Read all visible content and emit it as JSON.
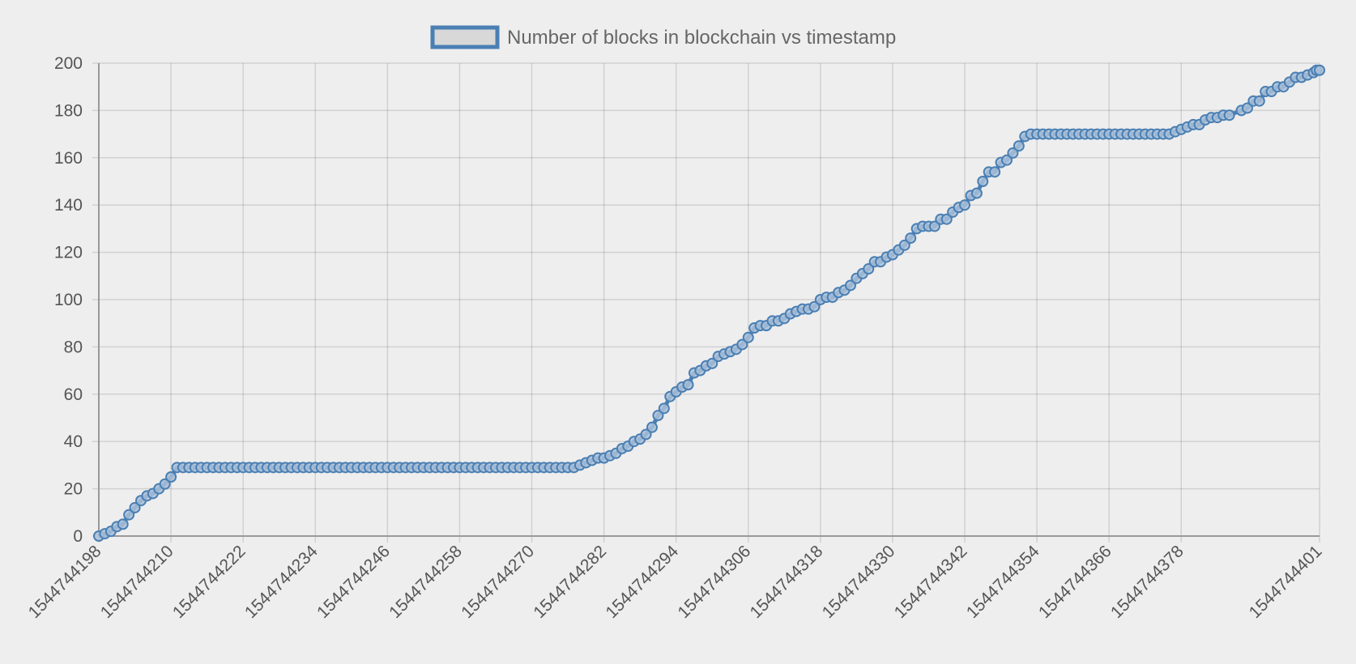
{
  "chart_data": {
    "type": "line",
    "legend": {
      "position": "top-center",
      "label": "Number of blocks in blockchain vs timestamp"
    },
    "colors": {
      "line": "#4a7fb3",
      "point_fill": "#a9c0d8",
      "legend_fill": "#d8d8d8",
      "background": "#eeeeee"
    },
    "x_axis": {
      "ticks": [
        "1544744198",
        "1544744210",
        "1544744222",
        "1544744234",
        "1544744246",
        "1544744258",
        "1544744270",
        "1544744282",
        "1544744294",
        "1544744306",
        "1544744318",
        "1544744330",
        "1544744342",
        "1544744354",
        "1544744366",
        "1544744378",
        "1544744401"
      ],
      "range": [
        1544744198,
        1544744401
      ]
    },
    "y_axis": {
      "ticks": [
        "0",
        "20",
        "40",
        "60",
        "80",
        "100",
        "120",
        "140",
        "160",
        "180",
        "200"
      ],
      "range": [
        0,
        200
      ]
    },
    "grid": true,
    "series": [
      {
        "name": "Number of blocks in blockchain vs timestamp",
        "points": [
          [
            1544744198,
            0
          ],
          [
            1544744199,
            1
          ],
          [
            1544744200,
            2
          ],
          [
            1544744201,
            4
          ],
          [
            1544744202,
            5
          ],
          [
            1544744203,
            9
          ],
          [
            1544744204,
            12
          ],
          [
            1544744205,
            15
          ],
          [
            1544744206,
            17
          ],
          [
            1544744207,
            18
          ],
          [
            1544744208,
            20
          ],
          [
            1544744209,
            22
          ],
          [
            1544744210,
            25
          ],
          [
            1544744211,
            29
          ],
          [
            1544744212,
            29
          ],
          [
            1544744213,
            29
          ],
          [
            1544744214,
            29
          ],
          [
            1544744215,
            29
          ],
          [
            1544744216,
            29
          ],
          [
            1544744217,
            29
          ],
          [
            1544744218,
            29
          ],
          [
            1544744219,
            29
          ],
          [
            1544744220,
            29
          ],
          [
            1544744221,
            29
          ],
          [
            1544744222,
            29
          ],
          [
            1544744223,
            29
          ],
          [
            1544744224,
            29
          ],
          [
            1544744225,
            29
          ],
          [
            1544744226,
            29
          ],
          [
            1544744227,
            29
          ],
          [
            1544744228,
            29
          ],
          [
            1544744229,
            29
          ],
          [
            1544744230,
            29
          ],
          [
            1544744231,
            29
          ],
          [
            1544744232,
            29
          ],
          [
            1544744233,
            29
          ],
          [
            1544744234,
            29
          ],
          [
            1544744235,
            29
          ],
          [
            1544744236,
            29
          ],
          [
            1544744237,
            29
          ],
          [
            1544744238,
            29
          ],
          [
            1544744239,
            29
          ],
          [
            1544744240,
            29
          ],
          [
            1544744241,
            29
          ],
          [
            1544744242,
            29
          ],
          [
            1544744243,
            29
          ],
          [
            1544744244,
            29
          ],
          [
            1544744245,
            29
          ],
          [
            1544744246,
            29
          ],
          [
            1544744247,
            29
          ],
          [
            1544744248,
            29
          ],
          [
            1544744249,
            29
          ],
          [
            1544744250,
            29
          ],
          [
            1544744251,
            29
          ],
          [
            1544744252,
            29
          ],
          [
            1544744253,
            29
          ],
          [
            1544744254,
            29
          ],
          [
            1544744255,
            29
          ],
          [
            1544744256,
            29
          ],
          [
            1544744257,
            29
          ],
          [
            1544744258,
            29
          ],
          [
            1544744259,
            29
          ],
          [
            1544744260,
            29
          ],
          [
            1544744261,
            29
          ],
          [
            1544744262,
            29
          ],
          [
            1544744263,
            29
          ],
          [
            1544744264,
            29
          ],
          [
            1544744265,
            29
          ],
          [
            1544744266,
            29
          ],
          [
            1544744267,
            29
          ],
          [
            1544744268,
            29
          ],
          [
            1544744269,
            29
          ],
          [
            1544744270,
            29
          ],
          [
            1544744271,
            29
          ],
          [
            1544744272,
            29
          ],
          [
            1544744273,
            29
          ],
          [
            1544744274,
            29
          ],
          [
            1544744275,
            29
          ],
          [
            1544744276,
            29
          ],
          [
            1544744277,
            29
          ],
          [
            1544744278,
            30
          ],
          [
            1544744279,
            31
          ],
          [
            1544744280,
            32
          ],
          [
            1544744281,
            33
          ],
          [
            1544744282,
            33
          ],
          [
            1544744283,
            34
          ],
          [
            1544744284,
            35
          ],
          [
            1544744285,
            37
          ],
          [
            1544744286,
            38
          ],
          [
            1544744287,
            40
          ],
          [
            1544744288,
            41
          ],
          [
            1544744289,
            43
          ],
          [
            1544744290,
            46
          ],
          [
            1544744291,
            51
          ],
          [
            1544744292,
            54
          ],
          [
            1544744293,
            59
          ],
          [
            1544744294,
            61
          ],
          [
            1544744295,
            63
          ],
          [
            1544744296,
            64
          ],
          [
            1544744297,
            69
          ],
          [
            1544744298,
            70
          ],
          [
            1544744299,
            72
          ],
          [
            1544744300,
            73
          ],
          [
            1544744301,
            76
          ],
          [
            1544744302,
            77
          ],
          [
            1544744303,
            78
          ],
          [
            1544744304,
            79
          ],
          [
            1544744305,
            81
          ],
          [
            1544744306,
            84
          ],
          [
            1544744307,
            88
          ],
          [
            1544744308,
            89
          ],
          [
            1544744309,
            89
          ],
          [
            1544744310,
            91
          ],
          [
            1544744311,
            91
          ],
          [
            1544744312,
            92
          ],
          [
            1544744313,
            94
          ],
          [
            1544744314,
            95
          ],
          [
            1544744315,
            96
          ],
          [
            1544744316,
            96
          ],
          [
            1544744317,
            97
          ],
          [
            1544744318,
            100
          ],
          [
            1544744319,
            101
          ],
          [
            1544744320,
            101
          ],
          [
            1544744321,
            103
          ],
          [
            1544744322,
            104
          ],
          [
            1544744323,
            106
          ],
          [
            1544744324,
            109
          ],
          [
            1544744325,
            111
          ],
          [
            1544744326,
            113
          ],
          [
            1544744327,
            116
          ],
          [
            1544744328,
            116
          ],
          [
            1544744329,
            118
          ],
          [
            1544744330,
            119
          ],
          [
            1544744331,
            121
          ],
          [
            1544744332,
            123
          ],
          [
            1544744333,
            126
          ],
          [
            1544744334,
            130
          ],
          [
            1544744335,
            131
          ],
          [
            1544744336,
            131
          ],
          [
            1544744337,
            131
          ],
          [
            1544744338,
            134
          ],
          [
            1544744339,
            134
          ],
          [
            1544744340,
            137
          ],
          [
            1544744341,
            139
          ],
          [
            1544744342,
            140
          ],
          [
            1544744343,
            144
          ],
          [
            1544744344,
            145
          ],
          [
            1544744345,
            150
          ],
          [
            1544744346,
            154
          ],
          [
            1544744347,
            154
          ],
          [
            1544744348,
            158
          ],
          [
            1544744349,
            159
          ],
          [
            1544744350,
            162
          ],
          [
            1544744351,
            165
          ],
          [
            1544744352,
            169
          ],
          [
            1544744353,
            170
          ],
          [
            1544744354,
            170
          ],
          [
            1544744355,
            170
          ],
          [
            1544744356,
            170
          ],
          [
            1544744357,
            170
          ],
          [
            1544744358,
            170
          ],
          [
            1544744359,
            170
          ],
          [
            1544744360,
            170
          ],
          [
            1544744361,
            170
          ],
          [
            1544744362,
            170
          ],
          [
            1544744363,
            170
          ],
          [
            1544744364,
            170
          ],
          [
            1544744365,
            170
          ],
          [
            1544744366,
            170
          ],
          [
            1544744367,
            170
          ],
          [
            1544744368,
            170
          ],
          [
            1544744369,
            170
          ],
          [
            1544744370,
            170
          ],
          [
            1544744371,
            170
          ],
          [
            1544744372,
            170
          ],
          [
            1544744373,
            170
          ],
          [
            1544744374,
            170
          ],
          [
            1544744375,
            170
          ],
          [
            1544744376,
            170
          ],
          [
            1544744377,
            171
          ],
          [
            1544744378,
            172
          ],
          [
            1544744379,
            173
          ],
          [
            1544744380,
            174
          ],
          [
            1544744381,
            174
          ],
          [
            1544744382,
            176
          ],
          [
            1544744383,
            177
          ],
          [
            1544744384,
            177
          ],
          [
            1544744385,
            178
          ],
          [
            1544744386,
            178
          ],
          [
            1544744388,
            180
          ],
          [
            1544744389,
            181
          ],
          [
            1544744390,
            184
          ],
          [
            1544744391,
            184
          ],
          [
            1544744392,
            188
          ],
          [
            1544744393,
            188
          ],
          [
            1544744394,
            190
          ],
          [
            1544744395,
            190
          ],
          [
            1544744396,
            192
          ],
          [
            1544744397,
            194
          ],
          [
            1544744398,
            194
          ],
          [
            1544744399,
            195
          ],
          [
            1544744400,
            196
          ],
          [
            1544744400.5,
            197
          ],
          [
            1544744401,
            197
          ]
        ]
      }
    ]
  }
}
